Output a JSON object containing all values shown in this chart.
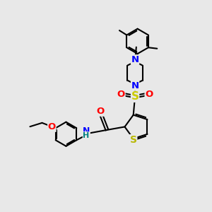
{
  "background_color": "#e8e8e8",
  "fig_size": [
    3.0,
    3.0
  ],
  "dpi": 100,
  "bond_color": "black",
  "bond_width": 1.5,
  "atom_colors": {
    "C": "black",
    "N": "blue",
    "O": "red",
    "S_thio": "#b8b800",
    "S_sulfonyl": "#cccc00",
    "H": "#008080"
  },
  "font_size": 8.5
}
